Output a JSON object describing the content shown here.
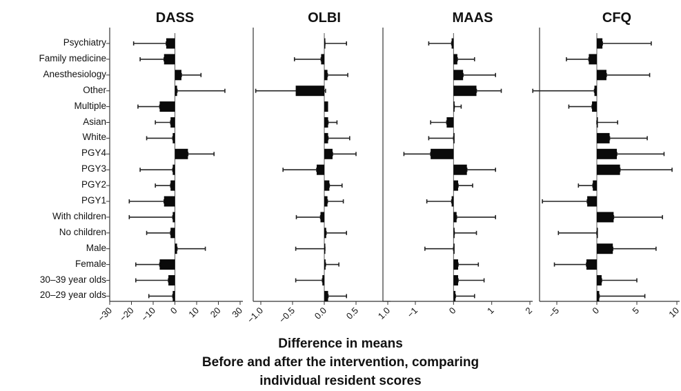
{
  "chart_data": {
    "type": "bar",
    "orientation": "horizontal",
    "error_bars": true,
    "categories": [
      "Psychiatry",
      "Family medicine",
      "Anesthesiology",
      "Other",
      "Multiple",
      "Asian",
      "White",
      "PGY4",
      "PGY3",
      "PGY2",
      "PGY1",
      "With children",
      "No children",
      "Male",
      "Female",
      "30–39 year olds",
      "20–29 year olds"
    ],
    "xlabel_lines": [
      "Difference in means",
      "Before and after the intervention, comparing",
      "individual resident scores"
    ],
    "panels": [
      {
        "title": "DASS",
        "xlim": [
          -30,
          30
        ],
        "ticks": [
          -30,
          -20,
          -10,
          0,
          10,
          20,
          30
        ],
        "tick_labels": [
          "−30",
          "−20",
          "−10",
          "0",
          "10",
          "20",
          "30"
        ],
        "values": [
          -4,
          -5,
          3,
          1,
          -7,
          -2,
          -1,
          6,
          -1,
          -2,
          -5,
          -1,
          -2,
          1,
          -7,
          -3,
          -1
        ],
        "err_low": [
          -19,
          -16,
          3,
          1,
          -17,
          -9,
          -13,
          6,
          -16,
          -9,
          -21,
          -21,
          -13,
          1,
          -18,
          -18,
          -12
        ],
        "err_high": [
          -4,
          -5,
          12,
          23,
          -7,
          -2,
          -1,
          18,
          -1,
          -2,
          -5,
          -1,
          -2,
          14,
          -7,
          -3,
          -1
        ]
      },
      {
        "title": "OLBI",
        "xlim": [
          -1.0,
          1.0
        ],
        "ticks": [
          -1.0,
          -0.5,
          0.0,
          0.5,
          1.0
        ],
        "tick_labels": [
          "−1.0",
          "−0.5",
          "0.0",
          "0.5",
          "1.0"
        ],
        "values": [
          0.01,
          -0.05,
          0.05,
          -0.45,
          0.06,
          0.06,
          0.06,
          0.13,
          -0.12,
          0.08,
          0.05,
          -0.06,
          0.03,
          0.01,
          0.02,
          -0.03,
          0.06
        ],
        "err_low": [
          0.01,
          -0.47,
          0.05,
          -1.08,
          0.06,
          0.06,
          0.06,
          0.13,
          -0.65,
          0.08,
          0.05,
          -0.44,
          0.03,
          -0.45,
          0.02,
          -0.45,
          0.06
        ],
        "err_high": [
          0.35,
          -0.05,
          0.37,
          0.02,
          0.06,
          0.2,
          0.4,
          0.5,
          -0.12,
          0.28,
          0.3,
          -0.06,
          0.35,
          0.01,
          0.23,
          -0.03,
          0.35
        ]
      },
      {
        "title": "MAAS",
        "xlim": [
          -1,
          2
        ],
        "ticks": [
          -1,
          0,
          1,
          2
        ],
        "tick_labels": [
          "−1",
          "0",
          "1",
          "2"
        ],
        "values": [
          -0.05,
          0.1,
          0.25,
          0.6,
          0.02,
          -0.18,
          0.0,
          -0.6,
          0.35,
          0.12,
          -0.05,
          0.08,
          0.02,
          0.0,
          0.12,
          0.12,
          0.05
        ],
        "err_low": [
          -0.65,
          0.1,
          0.25,
          0.6,
          0.02,
          -0.6,
          -0.65,
          -1.3,
          0.35,
          0.12,
          -0.7,
          0.08,
          0.02,
          -0.75,
          0.12,
          0.12,
          0.05
        ],
        "err_high": [
          -0.05,
          0.55,
          1.1,
          1.25,
          0.2,
          -0.18,
          0.0,
          -0.6,
          1.1,
          0.5,
          -0.05,
          1.1,
          0.6,
          0.0,
          0.65,
          0.8,
          0.55
        ]
      },
      {
        "title": "CFQ",
        "xlim": [
          -5,
          10
        ],
        "ticks": [
          -5,
          0,
          5,
          10
        ],
        "tick_labels": [
          "−5",
          "0",
          "5",
          "10"
        ],
        "values": [
          0.7,
          -1.0,
          1.2,
          -0.3,
          -0.6,
          0.0,
          1.6,
          2.5,
          2.9,
          -0.5,
          -1.2,
          2.1,
          0.0,
          2.0,
          -1.3,
          0.6,
          0.3
        ],
        "err_low": [
          0.7,
          -3.8,
          1.2,
          -8.0,
          -3.5,
          0.0,
          1.6,
          2.5,
          2.9,
          -2.3,
          -6.8,
          2.1,
          -4.8,
          2.0,
          -5.3,
          0.6,
          0.3
        ],
        "err_high": [
          6.8,
          -1.0,
          6.6,
          -0.3,
          -0.6,
          2.6,
          6.3,
          8.4,
          9.4,
          -0.5,
          -1.2,
          8.2,
          0.0,
          7.4,
          -1.3,
          5.0,
          6.0
        ]
      }
    ]
  }
}
